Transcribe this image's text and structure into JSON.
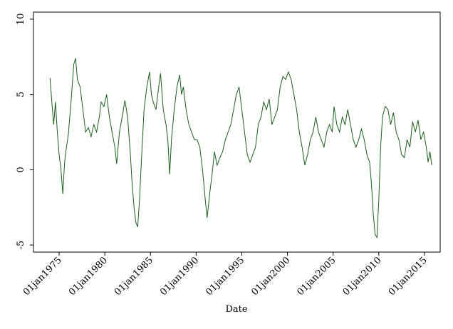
{
  "chart_data": {
    "type": "line",
    "x_label": "Date",
    "x": [
      1974.0,
      1974.2,
      1974.4,
      1974.6,
      1974.8,
      1975.0,
      1975.2,
      1975.4,
      1975.6,
      1975.8,
      1976.0,
      1976.3,
      1976.6,
      1976.8,
      1977.0,
      1977.3,
      1977.6,
      1977.9,
      1978.2,
      1978.5,
      1978.8,
      1979.1,
      1979.4,
      1979.6,
      1979.9,
      1980.2,
      1980.5,
      1980.8,
      1981.1,
      1981.3,
      1981.6,
      1981.9,
      1982.2,
      1982.5,
      1982.8,
      1983.0,
      1983.2,
      1983.4,
      1983.6,
      1983.8,
      1984.0,
      1984.3,
      1984.6,
      1984.9,
      1985.1,
      1985.3,
      1985.6,
      1985.9,
      1986.1,
      1986.4,
      1986.7,
      1986.9,
      1987.1,
      1987.3,
      1987.6,
      1987.9,
      1988.2,
      1988.4,
      1988.6,
      1988.9,
      1989.2,
      1989.5,
      1989.8,
      1990.1,
      1990.4,
      1990.7,
      1991.0,
      1991.2,
      1991.5,
      1991.8,
      1992.0,
      1992.3,
      1992.6,
      1992.9,
      1993.2,
      1993.5,
      1993.8,
      1994.1,
      1994.4,
      1994.7,
      1995.0,
      1995.3,
      1995.6,
      1995.9,
      1996.2,
      1996.5,
      1996.8,
      1997.1,
      1997.4,
      1997.7,
      1998.0,
      1998.3,
      1998.6,
      1998.9,
      1999.2,
      1999.5,
      1999.8,
      2000.1,
      2000.4,
      2000.7,
      2001.0,
      2001.3,
      2001.6,
      2001.9,
      2002.2,
      2002.5,
      2002.8,
      2003.1,
      2003.4,
      2003.7,
      2004.0,
      2004.3,
      2004.6,
      2004.9,
      2005.1,
      2005.4,
      2005.7,
      2006.0,
      2006.3,
      2006.6,
      2006.9,
      2007.2,
      2007.5,
      2007.8,
      2008.1,
      2008.4,
      2008.7,
      2009.0,
      2009.2,
      2009.4,
      2009.6,
      2009.8,
      2010.0,
      2010.2,
      2010.4,
      2010.7,
      2011.0,
      2011.3,
      2011.6,
      2011.9,
      2012.2,
      2012.5,
      2012.8,
      2013.1,
      2013.4,
      2013.7,
      2014.0,
      2014.3,
      2014.6,
      2014.9,
      2015.2,
      2015.4,
      2015.6,
      2015.8
    ],
    "values": [
      6.1,
      4.5,
      3.0,
      4.5,
      2.5,
      1.0,
      0.0,
      -1.6,
      0.5,
      1.5,
      2.3,
      4.5,
      7.0,
      7.4,
      6.0,
      5.5,
      4.0,
      2.5,
      2.8,
      2.2,
      3.0,
      2.5,
      3.5,
      4.5,
      4.2,
      5.0,
      3.5,
      2.5,
      1.5,
      0.4,
      2.5,
      3.5,
      4.6,
      3.5,
      1.0,
      -1.0,
      -2.5,
      -3.5,
      -3.8,
      -2.0,
      0.5,
      4.0,
      5.5,
      6.5,
      5.0,
      4.5,
      4.0,
      5.5,
      6.4,
      4.0,
      3.0,
      2.0,
      -0.3,
      2.0,
      4.0,
      5.5,
      6.3,
      5.0,
      5.5,
      4.0,
      3.0,
      2.5,
      2.0,
      2.0,
      1.5,
      0.0,
      -2.0,
      -3.2,
      -1.5,
      0.0,
      1.2,
      0.3,
      0.8,
      1.2,
      2.0,
      2.5,
      3.0,
      4.0,
      5.0,
      5.5,
      4.0,
      2.5,
      1.0,
      0.5,
      1.0,
      1.5,
      3.0,
      3.5,
      4.5,
      4.0,
      4.7,
      3.0,
      3.5,
      4.0,
      5.5,
      6.2,
      6.0,
      6.5,
      6.0,
      5.0,
      4.0,
      2.5,
      1.5,
      0.3,
      1.0,
      2.0,
      2.5,
      3.5,
      2.5,
      2.0,
      1.5,
      2.5,
      3.0,
      2.5,
      4.2,
      3.0,
      2.5,
      3.5,
      3.0,
      4.0,
      3.0,
      2.0,
      1.5,
      2.0,
      2.7,
      2.0,
      1.0,
      0.5,
      -1.0,
      -3.0,
      -4.3,
      -4.5,
      -2.0,
      1.5,
      3.5,
      4.2,
      4.0,
      3.0,
      3.8,
      2.5,
      2.0,
      1.0,
      0.8,
      2.0,
      1.5,
      3.2,
      2.5,
      3.3,
      2.0,
      2.5,
      1.5,
      0.5,
      1.2,
      0.3
    ],
    "color": "#1a5e1a",
    "xlim": [
      1972.19,
      2016.72
    ],
    "xticks": [
      {
        "value": 1975,
        "label": "01jan1975"
      },
      {
        "value": 1980,
        "label": "01jan1980"
      },
      {
        "value": 1985,
        "label": "01jan1985"
      },
      {
        "value": 1990,
        "label": "01jan1990"
      },
      {
        "value": 1995,
        "label": "01jan1995"
      },
      {
        "value": 2000,
        "label": "01jan2000"
      },
      {
        "value": 2005,
        "label": "01jan2005"
      },
      {
        "value": 2010,
        "label": "01jan2010"
      },
      {
        "value": 2015,
        "label": "01jan2015"
      }
    ],
    "ylim": [
      -5.47,
      10.47
    ],
    "yticks": [
      -5,
      0,
      5,
      10
    ]
  }
}
